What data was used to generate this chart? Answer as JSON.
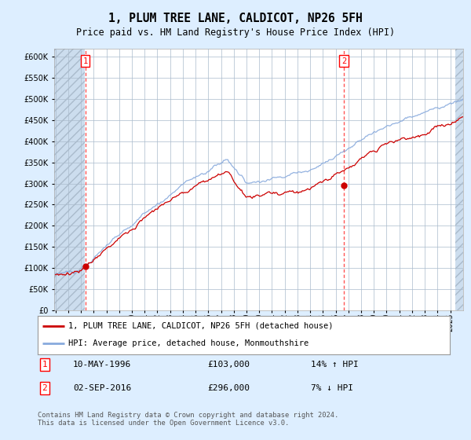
{
  "title": "1, PLUM TREE LANE, CALDICOT, NP26 5FH",
  "subtitle": "Price paid vs. HM Land Registry's House Price Index (HPI)",
  "ylim": [
    0,
    620000
  ],
  "yticks": [
    0,
    50000,
    100000,
    150000,
    200000,
    250000,
    300000,
    350000,
    400000,
    450000,
    500000,
    550000,
    600000
  ],
  "sale1_year": 1996.36,
  "sale1_price": 103000,
  "sale2_year": 2016.67,
  "sale2_price": 296000,
  "legend_line1": "1, PLUM TREE LANE, CALDICOT, NP26 5FH (detached house)",
  "legend_line2": "HPI: Average price, detached house, Monmouthshire",
  "table_row1": [
    "1",
    "10-MAY-1996",
    "£103,000",
    "14% ↑ HPI"
  ],
  "table_row2": [
    "2",
    "02-SEP-2016",
    "£296,000",
    "7% ↓ HPI"
  ],
  "footnote": "Contains HM Land Registry data © Crown copyright and database right 2024.\nThis data is licensed under the Open Government Licence v3.0.",
  "price_color": "#cc0000",
  "hpi_color": "#88aadd",
  "background_color": "#ddeeff",
  "plot_bg_color": "#ddeeff",
  "grid_color": "#aabbcc",
  "vline_color": "#ff5555",
  "hatch_color": "#bbccdd"
}
